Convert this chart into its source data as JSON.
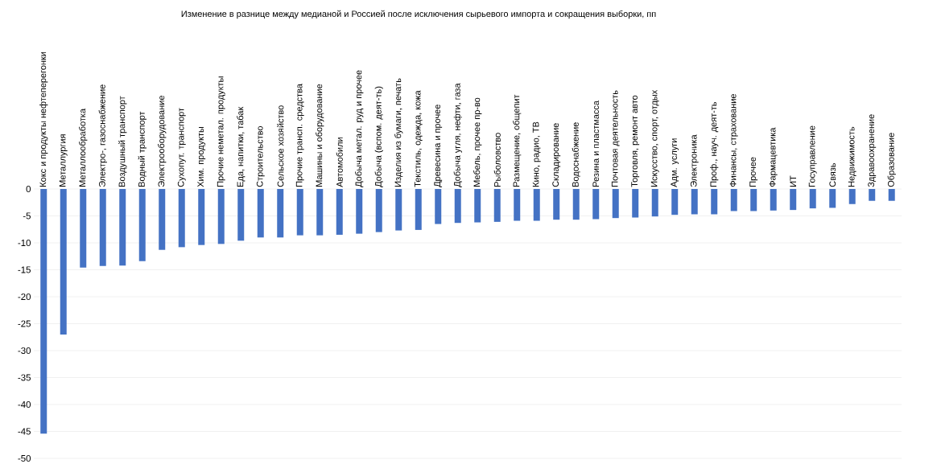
{
  "chart_data": {
    "type": "bar",
    "title": "Изменение в разнице между медианой и Россией после исключения сырьевого импорта и сокращения выборки, пп",
    "categories": [
      "Кокс и продукты нефтеперегонки",
      "Металлургия",
      "Металлообработка",
      "Электро-, газоснабжение",
      "Воздушный транспорт",
      "Водный транспорт",
      "Электрооборудование",
      "Сухопут. транспорт",
      "Хим. продукты",
      "Прочие неметал. продукты",
      "Еда, напитки, табак",
      "Строительство",
      "Сельское хозяйство",
      "Прочие трансп. средства",
      "Машины и оборудование",
      "Автомобили",
      "Добыча метал. руд и прочее",
      "Добыча (вспом. деят-ть)",
      "Изделия из бумаги, печать",
      "Текстиль, одежда, кожа",
      "Древесина и прочее",
      "Добыча угля, нефти, газа",
      "Мебель, прочее пр-во",
      "Рыболовство",
      "Размещение, общепит",
      "Кино, радио, ТВ",
      "Складирование",
      "Водоснабжение",
      "Резина и пластмасса",
      "Почтовая деятельность",
      "Торговля, ремонт авто",
      "Искусство, спорт, отдых",
      "Адм. услуги",
      "Электроника",
      "Проф., науч. деят-ть",
      "Финансы, страхование",
      "Прочее",
      "Фармацевтика",
      "ИТ",
      "Госуправление",
      "Связь",
      "Недвижимость",
      "Здравоохранение",
      "Образование"
    ],
    "values": [
      -45.4,
      -27.0,
      -14.6,
      -14.3,
      -14.2,
      -13.4,
      -11.3,
      -10.8,
      -10.4,
      -10.2,
      -9.6,
      -9.0,
      -9.0,
      -8.6,
      -8.6,
      -8.5,
      -8.3,
      -8.0,
      -7.7,
      -7.6,
      -6.5,
      -6.3,
      -6.2,
      -6.1,
      -5.9,
      -5.9,
      -5.7,
      -5.7,
      -5.6,
      -5.4,
      -5.3,
      -5.1,
      -4.8,
      -4.7,
      -4.7,
      -4.1,
      -4.1,
      -4.0,
      -3.9,
      -3.6,
      -3.5,
      -2.8,
      -2.2,
      -2.2
    ],
    "color": "#4472c4",
    "ylim": [
      -50,
      0
    ],
    "yticks": [
      -50,
      -45,
      -40,
      -35,
      -30,
      -25,
      -20,
      -15,
      -10,
      -5,
      0
    ],
    "grid": "y"
  }
}
